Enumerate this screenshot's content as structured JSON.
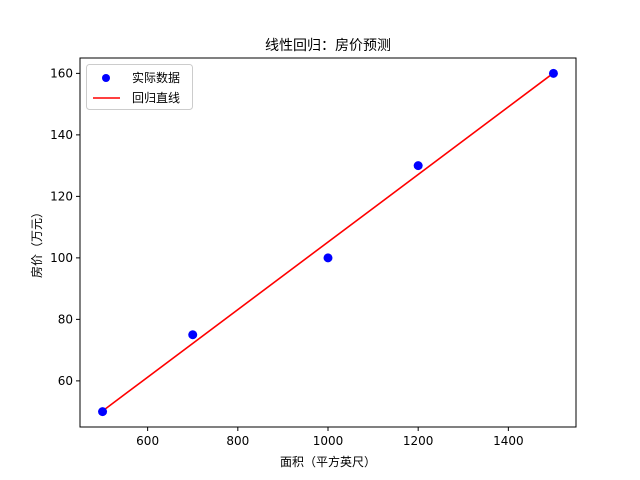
{
  "chart_data": {
    "type": "scatter",
    "title": "线性回归：房价预测",
    "xlabel": "面积（平方英尺）",
    "ylabel": "房价（万元）",
    "xlim": [
      450,
      1550
    ],
    "ylim": [
      45,
      165
    ],
    "xticks": [
      600,
      800,
      1000,
      1200,
      1400
    ],
    "yticks": [
      60,
      80,
      100,
      120,
      140,
      160
    ],
    "grid": false,
    "legend_position": "top-left",
    "series": [
      {
        "name": "实际数据",
        "kind": "scatter",
        "color": "#0000ff",
        "points": [
          {
            "x": 500,
            "y": 50
          },
          {
            "x": 700,
            "y": 75
          },
          {
            "x": 1000,
            "y": 100
          },
          {
            "x": 1200,
            "y": 130
          },
          {
            "x": 1500,
            "y": 160
          }
        ]
      },
      {
        "name": "回归直线",
        "kind": "line",
        "color": "#ff0000",
        "points": [
          {
            "x": 500,
            "y": 50.2
          },
          {
            "x": 1500,
            "y": 160.1
          }
        ]
      }
    ]
  }
}
